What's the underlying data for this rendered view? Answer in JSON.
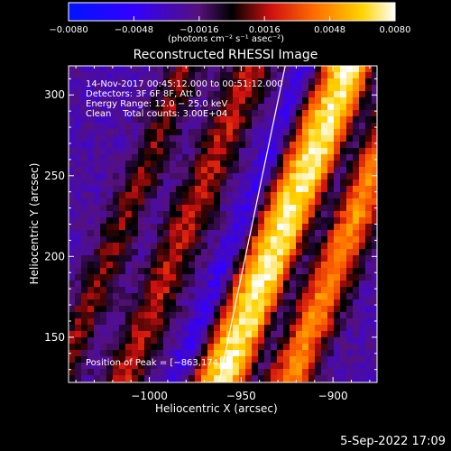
{
  "colorbar": {
    "ticks": [
      "−0.0080",
      "−0.0048",
      "−0.0016",
      "0.0016",
      "0.0048",
      "0.0080"
    ],
    "tick_values": [
      -0.008,
      -0.0048,
      -0.0016,
      0.0016,
      0.0048,
      0.008
    ],
    "range": [
      -0.008,
      0.008
    ],
    "unit_label": "(photons cm⁻² s⁻¹ asec⁻²)"
  },
  "chart_data": {
    "type": "heatmap",
    "title": "Reconstructed RHESSI Image",
    "xlabel": "Heliocentric X (arcsec)",
    "ylabel": "Heliocentric Y (arcsec)",
    "xlim": [
      -1044,
      -876
    ],
    "ylim": [
      122,
      318
    ],
    "x_ticks": [
      -1000,
      -950,
      -900
    ],
    "x_tick_labels": [
      "−1000",
      "−950",
      "−900"
    ],
    "y_ticks": [
      150,
      200,
      250,
      300
    ],
    "y_tick_labels": [
      "150",
      "200",
      "250",
      "300"
    ],
    "colormap": "blue-purple-black-red-orange-yellow-white",
    "peak_position": [
      -863,
      174
    ],
    "limb_line": [
      [
        -962,
        122
      ],
      [
        -926,
        318
      ]
    ],
    "annotations": {
      "time": "14-Nov-2017 00:45:12.000 to 00:51:12.000",
      "detectors": "Detectors: 3F 6F 8F, Att 0",
      "energy": "Energy Range: 12.0 − 25.0 keV",
      "clean": "Clean    Total counts: 3.00E+04",
      "peak": "Position of Peak = [−863,174]"
    }
  },
  "footer": {
    "date": "5-Sep-2022 17:09"
  }
}
